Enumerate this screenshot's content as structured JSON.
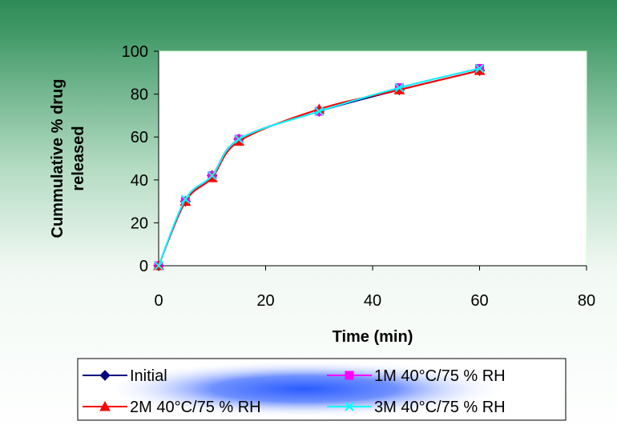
{
  "chart_data": {
    "type": "line",
    "title": "",
    "xlabel": "Time (min)",
    "ylabel_lines": [
      "Cummulative % drug",
      "released"
    ],
    "xlim": [
      0,
      80
    ],
    "ylim": [
      0,
      100
    ],
    "xticks": [
      0,
      20,
      40,
      60,
      80
    ],
    "yticks": [
      0,
      20,
      40,
      60,
      80,
      100
    ],
    "x": [
      0,
      5,
      10,
      15,
      30,
      45,
      60
    ],
    "grid": false,
    "legend_position": "bottom",
    "series": [
      {
        "name": "Initial",
        "color": "#000080",
        "marker": "diamond",
        "values": [
          0,
          30,
          42,
          59,
          72,
          82,
          91
        ]
      },
      {
        "name": "1M 40°C/75 % RH",
        "color": "#ff00ff",
        "marker": "square",
        "values": [
          0,
          30,
          42,
          59,
          72,
          83,
          92
        ]
      },
      {
        "name": "2M 40°C/75 % RH",
        "color": "#ff0000",
        "marker": "triangle",
        "values": [
          0,
          30,
          41,
          58,
          73,
          82,
          91
        ]
      },
      {
        "name": "3M 40°C/75 % RH",
        "color": "#00ffff",
        "marker": "x",
        "values": [
          0,
          31,
          42,
          59,
          72,
          83,
          92
        ]
      }
    ],
    "colors": {
      "background_top": "#2e8b57",
      "background_bottom": "#ffffff",
      "plot_area": "#ffffff",
      "plot_border": "#ccffcc",
      "legend_glow": "#2a5cff"
    }
  }
}
